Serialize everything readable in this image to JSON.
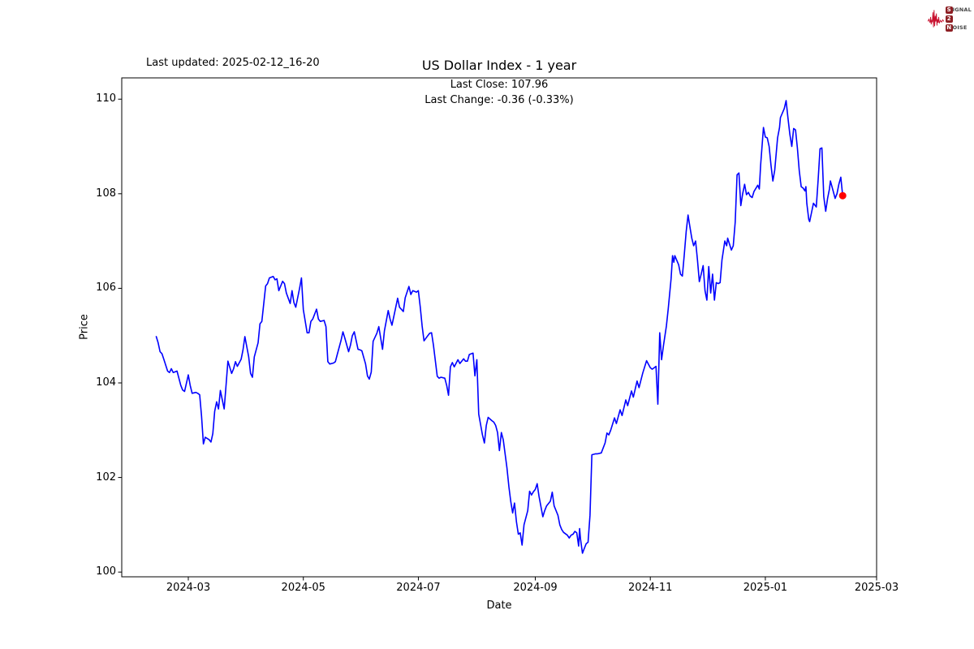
{
  "header": {
    "last_updated": "Last updated: 2025-02-12_16-20",
    "title": "US Dollar Index - 1 year",
    "subtitle_line1": "Last Close: 107.96",
    "subtitle_line2": "Last Change: -0.36 (-0.33%)"
  },
  "logo": {
    "line1_boxed": "S",
    "line1_rest": "IGNAL",
    "line2_boxed": "2",
    "line2_rest": "",
    "line3_boxed": "N",
    "line3_rest": "OISE",
    "waveform_color": "#c8102e",
    "box_color": "#8d1f24",
    "text_color": "#444444"
  },
  "chart_data": {
    "type": "line",
    "title": "US Dollar Index - 1 year",
    "xlabel": "Date",
    "ylabel": "Price",
    "grid": false,
    "legend": null,
    "line_color": "#0000ff",
    "x_unit": "days since 2024-02-13",
    "x_start_date": "2024-02-13",
    "x_end_date": "2025-02-12",
    "xlim_days": [
      -18.3,
      382.0
    ],
    "ylim": [
      99.9,
      110.45
    ],
    "y_ticks": [
      100,
      102,
      104,
      106,
      108,
      110
    ],
    "x_ticks": [
      {
        "day": 17,
        "label": "2024-03"
      },
      {
        "day": 78,
        "label": "2024-05"
      },
      {
        "day": 139,
        "label": "2024-07"
      },
      {
        "day": 201,
        "label": "2024-09"
      },
      {
        "day": 262,
        "label": "2024-11"
      },
      {
        "day": 323,
        "label": "2025-01"
      },
      {
        "day": 382,
        "label": "2025-03"
      }
    ],
    "last_close": 107.96,
    "last_change": -0.36,
    "last_change_pct": "-0.33%",
    "last_point": {
      "day": 364,
      "price": 107.96,
      "color": "#ff0000"
    },
    "points": [
      [
        0,
        104.98
      ],
      [
        1,
        104.85
      ],
      [
        2,
        104.66
      ],
      [
        3,
        104.62
      ],
      [
        4,
        104.5
      ],
      [
        6,
        104.25
      ],
      [
        7,
        104.22
      ],
      [
        8,
        104.3
      ],
      [
        9,
        104.22
      ],
      [
        11,
        104.25
      ],
      [
        12,
        104.1
      ],
      [
        13,
        103.95
      ],
      [
        14,
        103.85
      ],
      [
        15,
        103.82
      ],
      [
        17,
        104.17
      ],
      [
        18,
        103.95
      ],
      [
        19,
        103.78
      ],
      [
        21,
        103.8
      ],
      [
        22,
        103.78
      ],
      [
        23,
        103.75
      ],
      [
        24,
        103.3
      ],
      [
        25,
        102.71
      ],
      [
        26,
        102.85
      ],
      [
        28,
        102.8
      ],
      [
        29,
        102.75
      ],
      [
        30,
        102.93
      ],
      [
        31,
        103.4
      ],
      [
        32,
        103.6
      ],
      [
        33,
        103.45
      ],
      [
        34,
        103.84
      ],
      [
        36,
        103.45
      ],
      [
        37,
        103.95
      ],
      [
        38,
        104.46
      ],
      [
        40,
        104.2
      ],
      [
        41,
        104.3
      ],
      [
        42,
        104.45
      ],
      [
        43,
        104.35
      ],
      [
        45,
        104.5
      ],
      [
        46,
        104.7
      ],
      [
        47,
        104.98
      ],
      [
        49,
        104.55
      ],
      [
        50,
        104.2
      ],
      [
        51,
        104.12
      ],
      [
        52,
        104.55
      ],
      [
        54,
        104.85
      ],
      [
        55,
        105.25
      ],
      [
        56,
        105.3
      ],
      [
        58,
        106.05
      ],
      [
        59,
        106.1
      ],
      [
        60,
        106.22
      ],
      [
        62,
        106.25
      ],
      [
        63,
        106.18
      ],
      [
        64,
        106.2
      ],
      [
        65,
        105.95
      ],
      [
        67,
        106.15
      ],
      [
        68,
        106.1
      ],
      [
        69,
        105.9
      ],
      [
        71,
        105.68
      ],
      [
        72,
        105.95
      ],
      [
        73,
        105.7
      ],
      [
        74,
        105.6
      ],
      [
        76,
        106.0
      ],
      [
        77,
        106.22
      ],
      [
        78,
        105.55
      ],
      [
        80,
        105.06
      ],
      [
        81,
        105.06
      ],
      [
        82,
        105.3
      ],
      [
        83,
        105.35
      ],
      [
        85,
        105.56
      ],
      [
        86,
        105.35
      ],
      [
        87,
        105.3
      ],
      [
        89,
        105.32
      ],
      [
        90,
        105.19
      ],
      [
        91,
        104.45
      ],
      [
        92,
        104.4
      ],
      [
        94,
        104.42
      ],
      [
        95,
        104.45
      ],
      [
        96,
        104.6
      ],
      [
        98,
        104.9
      ],
      [
        99,
        105.08
      ],
      [
        100,
        104.95
      ],
      [
        102,
        104.66
      ],
      [
        103,
        104.8
      ],
      [
        104,
        105.0
      ],
      [
        105,
        105.08
      ],
      [
        107,
        104.71
      ],
      [
        108,
        104.7
      ],
      [
        109,
        104.68
      ],
      [
        111,
        104.4
      ],
      [
        112,
        104.15
      ],
      [
        113,
        104.08
      ],
      [
        114,
        104.23
      ],
      [
        115,
        104.88
      ],
      [
        117,
        105.05
      ],
      [
        118,
        105.19
      ],
      [
        120,
        104.71
      ],
      [
        121,
        105.1
      ],
      [
        123,
        105.53
      ],
      [
        124,
        105.35
      ],
      [
        125,
        105.22
      ],
      [
        127,
        105.6
      ],
      [
        128,
        105.79
      ],
      [
        129,
        105.6
      ],
      [
        131,
        105.51
      ],
      [
        132,
        105.8
      ],
      [
        134,
        106.04
      ],
      [
        135,
        105.87
      ],
      [
        136,
        105.95
      ],
      [
        138,
        105.92
      ],
      [
        139,
        105.95
      ],
      [
        140,
        105.6
      ],
      [
        141,
        105.2
      ],
      [
        142,
        104.89
      ],
      [
        144,
        105.0
      ],
      [
        145,
        105.05
      ],
      [
        146,
        105.06
      ],
      [
        147,
        104.8
      ],
      [
        149,
        104.14
      ],
      [
        150,
        104.1
      ],
      [
        151,
        104.12
      ],
      [
        153,
        104.1
      ],
      [
        154,
        103.95
      ],
      [
        155,
        103.74
      ],
      [
        156,
        104.34
      ],
      [
        157,
        104.43
      ],
      [
        158,
        104.34
      ],
      [
        160,
        104.49
      ],
      [
        161,
        104.41
      ],
      [
        163,
        104.51
      ],
      [
        164,
        104.46
      ],
      [
        165,
        104.46
      ],
      [
        166,
        104.6
      ],
      [
        168,
        104.63
      ],
      [
        169,
        104.15
      ],
      [
        170,
        104.49
      ],
      [
        171,
        103.34
      ],
      [
        173,
        102.9
      ],
      [
        174,
        102.73
      ],
      [
        175,
        103.1
      ],
      [
        176,
        103.27
      ],
      [
        178,
        103.2
      ],
      [
        179,
        103.17
      ],
      [
        180,
        103.1
      ],
      [
        181,
        102.95
      ],
      [
        182,
        102.57
      ],
      [
        183,
        102.95
      ],
      [
        184,
        102.8
      ],
      [
        185,
        102.5
      ],
      [
        186,
        102.2
      ],
      [
        187,
        101.8
      ],
      [
        188,
        101.49
      ],
      [
        189,
        101.25
      ],
      [
        190,
        101.46
      ],
      [
        191,
        101.06
      ],
      [
        192,
        100.8
      ],
      [
        193,
        100.83
      ],
      [
        194,
        100.57
      ],
      [
        195,
        101.0
      ],
      [
        197,
        101.3
      ],
      [
        198,
        101.71
      ],
      [
        199,
        101.63
      ],
      [
        200,
        101.7
      ],
      [
        201,
        101.75
      ],
      [
        202,
        101.87
      ],
      [
        203,
        101.6
      ],
      [
        205,
        101.17
      ],
      [
        206,
        101.3
      ],
      [
        207,
        101.4
      ],
      [
        209,
        101.5
      ],
      [
        210,
        101.69
      ],
      [
        211,
        101.4
      ],
      [
        213,
        101.2
      ],
      [
        214,
        101.0
      ],
      [
        215,
        100.9
      ],
      [
        216,
        100.84
      ],
      [
        218,
        100.78
      ],
      [
        219,
        100.72
      ],
      [
        220,
        100.78
      ],
      [
        221,
        100.8
      ],
      [
        222,
        100.86
      ],
      [
        223,
        100.83
      ],
      [
        224,
        100.55
      ],
      [
        224.5,
        100.92
      ],
      [
        225,
        100.7
      ],
      [
        226,
        100.4
      ],
      [
        227,
        100.5
      ],
      [
        228,
        100.6
      ],
      [
        229,
        100.63
      ],
      [
        230,
        101.2
      ],
      [
        231,
        102.48
      ],
      [
        233,
        102.5
      ],
      [
        234,
        102.5
      ],
      [
        236,
        102.52
      ],
      [
        238,
        102.73
      ],
      [
        239,
        102.94
      ],
      [
        240,
        102.9
      ],
      [
        241,
        103.0
      ],
      [
        243,
        103.26
      ],
      [
        244,
        103.14
      ],
      [
        246,
        103.43
      ],
      [
        247,
        103.31
      ],
      [
        249,
        103.64
      ],
      [
        250,
        103.52
      ],
      [
        252,
        103.83
      ],
      [
        253,
        103.7
      ],
      [
        255,
        104.04
      ],
      [
        256,
        103.9
      ],
      [
        258,
        104.21
      ],
      [
        260,
        104.47
      ],
      [
        262,
        104.32
      ],
      [
        263,
        104.29
      ],
      [
        265,
        104.35
      ],
      [
        266,
        103.55
      ],
      [
        267,
        105.06
      ],
      [
        268,
        104.49
      ],
      [
        269,
        104.8
      ],
      [
        270.5,
        105.2
      ],
      [
        271.5,
        105.57
      ],
      [
        273,
        106.2
      ],
      [
        273.8,
        106.69
      ],
      [
        274.5,
        106.55
      ],
      [
        275,
        106.69
      ],
      [
        277,
        106.5
      ],
      [
        278,
        106.3
      ],
      [
        279,
        106.26
      ],
      [
        280,
        106.7
      ],
      [
        281,
        107.2
      ],
      [
        282,
        107.55
      ],
      [
        283,
        107.3
      ],
      [
        284,
        107.06
      ],
      [
        285,
        106.9
      ],
      [
        286,
        107.0
      ],
      [
        287,
        106.6
      ],
      [
        288,
        106.14
      ],
      [
        289,
        106.3
      ],
      [
        290,
        106.48
      ],
      [
        291,
        105.95
      ],
      [
        292,
        105.75
      ],
      [
        293,
        106.46
      ],
      [
        294,
        105.9
      ],
      [
        295,
        106.3
      ],
      [
        296,
        105.75
      ],
      [
        297,
        106.12
      ],
      [
        298,
        106.1
      ],
      [
        299,
        106.12
      ],
      [
        300,
        106.6
      ],
      [
        301.5,
        107.0
      ],
      [
        302.5,
        106.9
      ],
      [
        303,
        107.06
      ],
      [
        305,
        106.81
      ],
      [
        306,
        106.9
      ],
      [
        307,
        107.4
      ],
      [
        308,
        108.4
      ],
      [
        309,
        108.44
      ],
      [
        310,
        107.75
      ],
      [
        311,
        108.0
      ],
      [
        312,
        108.2
      ],
      [
        313,
        107.98
      ],
      [
        314,
        108.03
      ],
      [
        315,
        107.95
      ],
      [
        316,
        107.92
      ],
      [
        317,
        108.05
      ],
      [
        319,
        108.18
      ],
      [
        319.8,
        108.1
      ],
      [
        320.5,
        108.6
      ],
      [
        322,
        109.4
      ],
      [
        323,
        109.2
      ],
      [
        324,
        109.18
      ],
      [
        325,
        109.0
      ],
      [
        326,
        108.6
      ],
      [
        327,
        108.27
      ],
      [
        328,
        108.5
      ],
      [
        329.5,
        109.18
      ],
      [
        330.5,
        109.4
      ],
      [
        331,
        109.61
      ],
      [
        333,
        109.8
      ],
      [
        334,
        109.97
      ],
      [
        335,
        109.6
      ],
      [
        336,
        109.26
      ],
      [
        337,
        109.0
      ],
      [
        338,
        109.38
      ],
      [
        339,
        109.35
      ],
      [
        340,
        108.97
      ],
      [
        341,
        108.49
      ],
      [
        342,
        108.15
      ],
      [
        343,
        108.12
      ],
      [
        344,
        108.06
      ],
      [
        344.5,
        108.15
      ],
      [
        345,
        107.8
      ],
      [
        346,
        107.46
      ],
      [
        346.5,
        107.41
      ],
      [
        347.5,
        107.6
      ],
      [
        348.5,
        107.8
      ],
      [
        350,
        107.72
      ],
      [
        351,
        108.3
      ],
      [
        352,
        108.95
      ],
      [
        353,
        108.97
      ],
      [
        354,
        107.94
      ],
      [
        355,
        107.63
      ],
      [
        356,
        107.9
      ],
      [
        357,
        108.1
      ],
      [
        357.5,
        108.27
      ],
      [
        359,
        108.05
      ],
      [
        360,
        107.9
      ],
      [
        361,
        108.0
      ],
      [
        362,
        108.2
      ],
      [
        363,
        108.35
      ],
      [
        364,
        107.96
      ]
    ]
  }
}
